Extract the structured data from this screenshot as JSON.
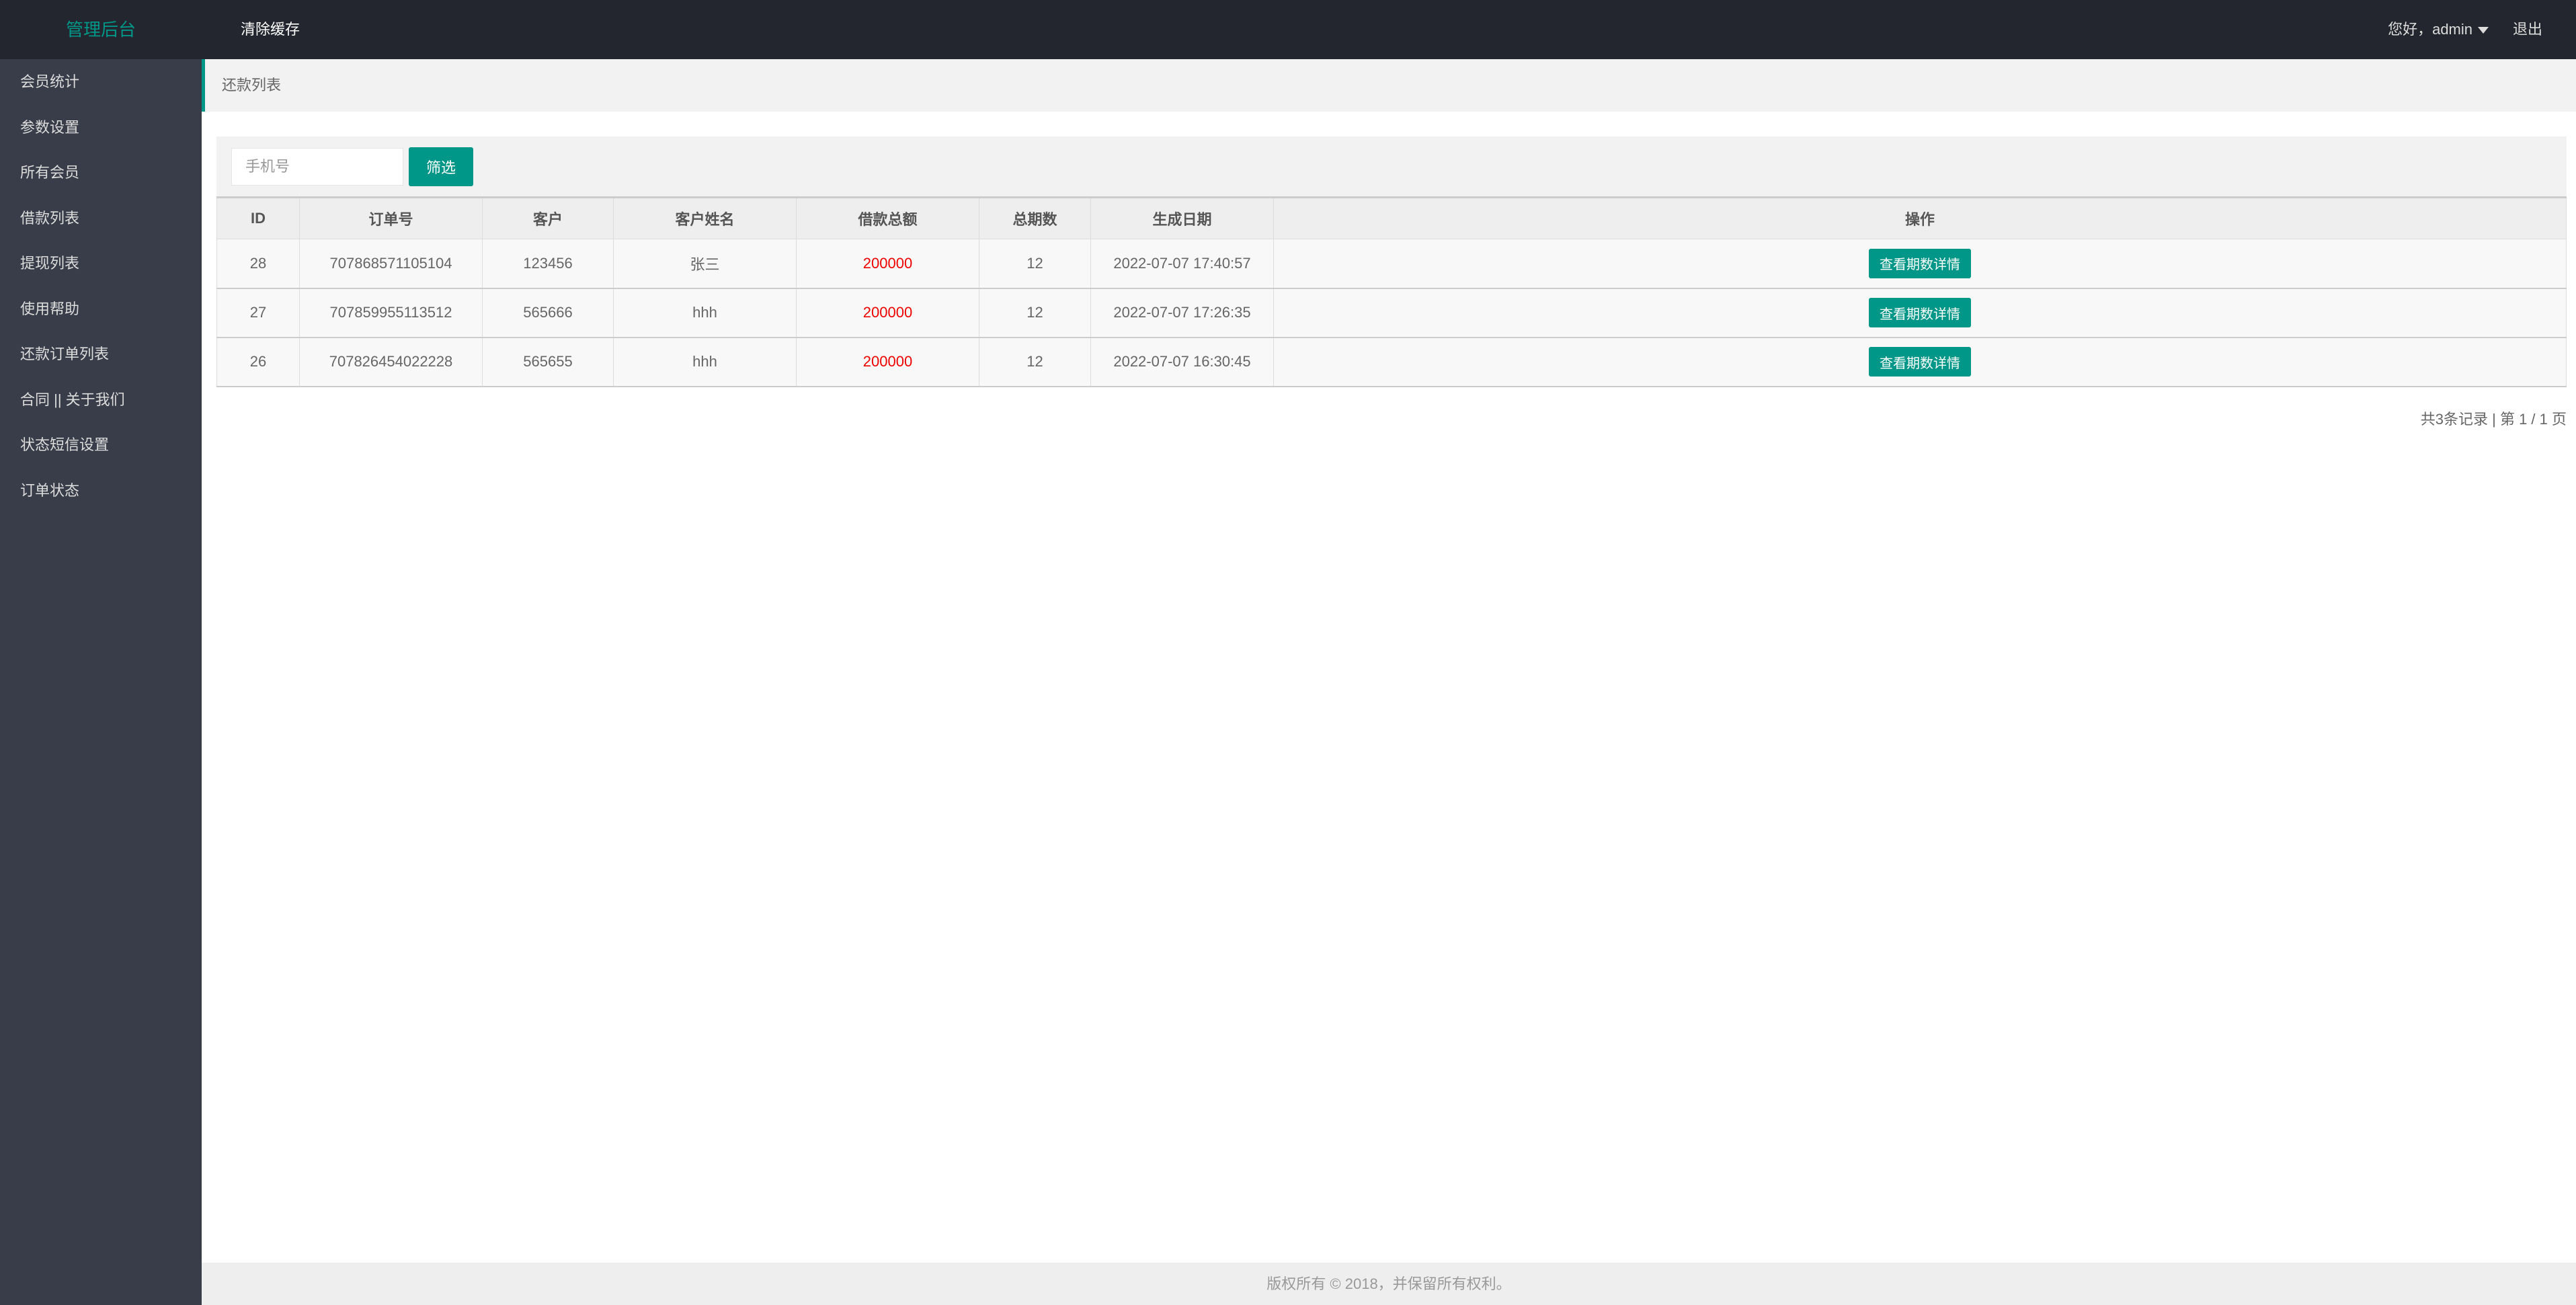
{
  "header": {
    "logo": "管理后台",
    "clear_cache": "清除缓存",
    "greeting": "您好，admin",
    "logout": "退出"
  },
  "sidebar": {
    "items": [
      {
        "label": "会员统计"
      },
      {
        "label": "参数设置"
      },
      {
        "label": "所有会员"
      },
      {
        "label": "借款列表"
      },
      {
        "label": "提现列表"
      },
      {
        "label": "使用帮助"
      },
      {
        "label": "还款订单列表"
      },
      {
        "label": "合同 || 关于我们"
      },
      {
        "label": "状态短信设置"
      },
      {
        "label": "订单状态"
      }
    ]
  },
  "breadcrumb": "还款列表",
  "filter": {
    "placeholder": "手机号",
    "value": "",
    "button": "筛选"
  },
  "table": {
    "headers": [
      "ID",
      "订单号",
      "客户",
      "客户姓名",
      "借款总额",
      "总期数",
      "生成日期",
      "操作"
    ],
    "rows": [
      {
        "id": "28",
        "order": "707868571105104",
        "customer": "123456",
        "name": "张三",
        "amount": "200000",
        "periods": "12",
        "date": "2022-07-07 17:40:57",
        "action": "查看期数详情"
      },
      {
        "id": "27",
        "order": "707859955113512",
        "customer": "565666",
        "name": "hhh",
        "amount": "200000",
        "periods": "12",
        "date": "2022-07-07 17:26:35",
        "action": "查看期数详情"
      },
      {
        "id": "26",
        "order": "707826454022228",
        "customer": "565655",
        "name": "hhh",
        "amount": "200000",
        "periods": "12",
        "date": "2022-07-07 16:30:45",
        "action": "查看期数详情"
      }
    ]
  },
  "pagination": "共3条记录 | 第 1 / 1 页",
  "footer": "版权所有 © 2018，并保留所有权利。",
  "colors": {
    "accent": "#009688",
    "header_bg": "#23262E",
    "sidebar_bg": "#393D49",
    "amount": "#e00000"
  }
}
